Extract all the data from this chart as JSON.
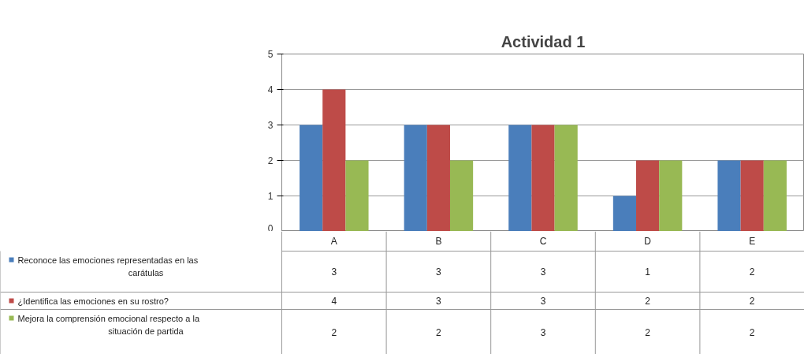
{
  "chart_data": {
    "type": "bar",
    "title": "Actividad 1",
    "categories": [
      "A",
      "B",
      "C",
      "D",
      "E"
    ],
    "series": [
      {
        "name": "Reconoce las emociones representadas en las carátulas",
        "color": "#4a7ebb",
        "values": [
          3,
          3,
          3,
          1,
          2
        ]
      },
      {
        "name": "¿Identifica las emociones en su rostro?",
        "color": "#be4b48",
        "values": [
          4,
          3,
          3,
          2,
          2
        ]
      },
      {
        "name": "Mejora la comprensión emocional respecto a la situación de partida",
        "color": "#98b954",
        "values": [
          2,
          2,
          3,
          2,
          2
        ]
      }
    ],
    "ylim": [
      0,
      5
    ],
    "yticks": [
      0,
      1,
      2,
      3,
      4,
      5
    ],
    "grid": "y",
    "legend": "bottom left",
    "data_labels": true,
    "tick_labels": "y"
  }
}
